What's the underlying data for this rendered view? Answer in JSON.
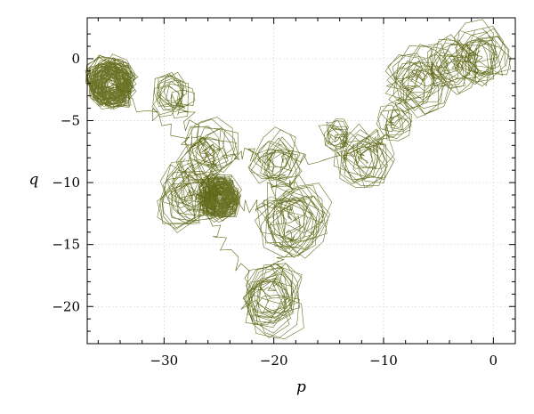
{
  "chart_data": {
    "type": "line",
    "title": "",
    "xlabel": "p",
    "ylabel": "q",
    "xlim": [
      -37,
      2
    ],
    "ylim": [
      -23,
      3.3
    ],
    "x_ticks": [
      -30,
      -20,
      -10,
      0
    ],
    "x_tick_labels": [
      "−30",
      "−20",
      "−10",
      "0"
    ],
    "y_ticks": [
      0,
      -5,
      -10,
      -15,
      -20
    ],
    "y_tick_labels": [
      "0",
      "−5",
      "−10",
      "−15",
      "−20"
    ],
    "grid": true,
    "legend": "none",
    "series_color": "#5a6410",
    "trajectory_clusters": [
      {
        "cx": -34.8,
        "cy": -2.0,
        "r": 1.8,
        "turns": 40
      },
      {
        "cx": -25.0,
        "cy": -11.2,
        "r": 1.5,
        "turns": 40
      },
      {
        "cx": -28.0,
        "cy": -11.0,
        "r": 2.4,
        "turns": 10
      },
      {
        "cx": -18.0,
        "cy": -12.8,
        "r": 2.8,
        "turns": 10
      },
      {
        "cx": -20.5,
        "cy": -19.5,
        "r": 2.6,
        "turns": 10
      },
      {
        "cx": -26.0,
        "cy": -7.5,
        "r": 2.2,
        "turns": 7
      },
      {
        "cx": -29.0,
        "cy": -3.0,
        "r": 1.6,
        "turns": 6
      },
      {
        "cx": -20.0,
        "cy": -8.0,
        "r": 2.0,
        "turns": 6
      },
      {
        "cx": -12.0,
        "cy": -8.0,
        "r": 2.2,
        "turns": 7
      },
      {
        "cx": -14.5,
        "cy": -6.0,
        "r": 1.2,
        "turns": 4
      },
      {
        "cx": -7.0,
        "cy": -1.5,
        "r": 2.4,
        "turns": 8
      },
      {
        "cx": -4.0,
        "cy": -0.5,
        "r": 2.0,
        "turns": 6
      },
      {
        "cx": -1.0,
        "cy": 0.5,
        "r": 2.2,
        "turns": 8
      },
      {
        "cx": -9.0,
        "cy": -5.0,
        "r": 1.4,
        "turns": 4
      }
    ]
  }
}
